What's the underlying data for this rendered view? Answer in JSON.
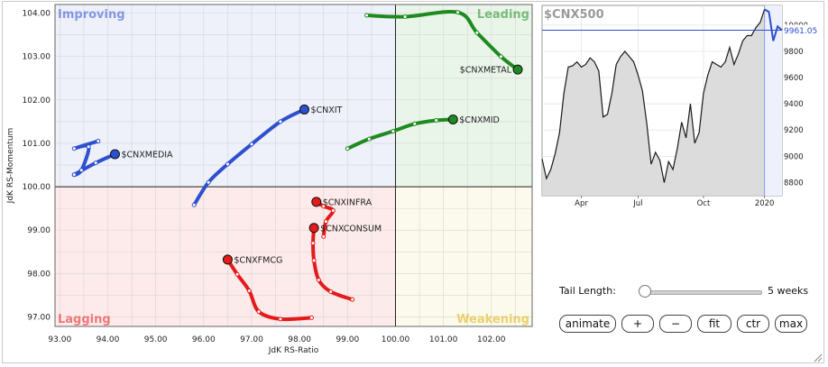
{
  "colors": {
    "leading": "#1f8a1f",
    "improving": "#2e50cf",
    "lagging": "#e51b1b",
    "weakening": "#e0b000",
    "quad_leading_bg": "#eaf5ea",
    "quad_improving_bg": "#eef0fa",
    "quad_lagging_bg": "#fdeaea",
    "quad_weakening_bg": "#fbfaec",
    "benchmark_line": "#1a1a1a",
    "benchmark_recent": "#2d4fd0"
  },
  "chart_data": [
    {
      "type": "scatter",
      "subtype": "relative-rotation-graph",
      "xlabel": "JdK RS-Ratio",
      "ylabel": "JdK RS-Momentum",
      "xlim": [
        92.9,
        102.85
      ],
      "ylim": [
        96.78,
        104.2
      ],
      "x_center": 100.0,
      "y_center": 100.0,
      "x_ticks": [
        93,
        94,
        95,
        96,
        97,
        98,
        99,
        100,
        101,
        102
      ],
      "x_tick_labels": [
        "93.00",
        "94.00",
        "95.00",
        "96.00",
        "97.00",
        "98.00",
        "99.00",
        "100.00",
        "101.00",
        "102.00"
      ],
      "y_ticks": [
        97,
        98,
        99,
        100,
        101,
        102,
        103,
        104
      ],
      "y_tick_labels": [
        "97.00",
        "98.00",
        "99.00",
        "100.00",
        "101.00",
        "102.00",
        "103.00",
        "104.00"
      ],
      "grid": true,
      "quadrants": [
        {
          "name": "Improving",
          "position": "top-left"
        },
        {
          "name": "Leading",
          "position": "top-right"
        },
        {
          "name": "Lagging",
          "position": "bottom-left"
        },
        {
          "name": "Weakening",
          "position": "bottom-right"
        }
      ],
      "series": [
        {
          "name": "$CNXMETAL",
          "quadrant": "Leading",
          "tail": [
            [
              99.4,
              103.95
            ],
            [
              100.2,
              103.92
            ],
            [
              101.3,
              104.02
            ],
            [
              101.7,
              103.55
            ],
            [
              102.2,
              103.0
            ],
            [
              102.55,
              102.7
            ]
          ]
        },
        {
          "name": "$CNXMID",
          "quadrant": "Leading",
          "tail": [
            [
              99.0,
              100.88
            ],
            [
              99.45,
              101.1
            ],
            [
              99.95,
              101.28
            ],
            [
              100.4,
              101.45
            ],
            [
              100.85,
              101.53
            ],
            [
              101.2,
              101.55
            ]
          ]
        },
        {
          "name": "$CNXIT",
          "quadrant": "Improving",
          "tail": [
            [
              95.8,
              99.58
            ],
            [
              96.1,
              100.1
            ],
            [
              96.5,
              100.52
            ],
            [
              97.0,
              100.98
            ],
            [
              97.6,
              101.5
            ],
            [
              98.1,
              101.78
            ]
          ]
        },
        {
          "name": "$CNXMEDIA",
          "quadrant": "Improving",
          "tail": [
            [
              93.8,
              101.05
            ],
            [
              93.3,
              100.88
            ],
            [
              93.6,
              100.92
            ],
            [
              93.45,
              100.38
            ],
            [
              93.3,
              100.28
            ],
            [
              93.75,
              100.55
            ],
            [
              94.15,
              100.75
            ]
          ]
        },
        {
          "name": "$CNXINFRA",
          "quadrant": "Lagging",
          "tail": [
            [
              98.5,
              98.85
            ],
            [
              98.55,
              99.2
            ],
            [
              98.7,
              99.45
            ],
            [
              98.5,
              99.55
            ],
            [
              98.35,
              99.65
            ]
          ]
        },
        {
          "name": "$CNXCONSUM",
          "quadrant": "Lagging",
          "tail": [
            [
              99.1,
              97.4
            ],
            [
              98.65,
              97.58
            ],
            [
              98.4,
              97.85
            ],
            [
              98.3,
              98.3
            ],
            [
              98.28,
              98.7
            ],
            [
              98.3,
              99.05
            ]
          ]
        },
        {
          "name": "$CNXFMCG",
          "quadrant": "Lagging",
          "tail": [
            [
              98.25,
              96.98
            ],
            [
              97.6,
              96.95
            ],
            [
              97.15,
              97.12
            ],
            [
              96.95,
              97.6
            ],
            [
              96.7,
              97.98
            ],
            [
              96.5,
              98.32
            ]
          ]
        }
      ]
    },
    {
      "type": "area",
      "title": "$CNX500",
      "last_value_label": "9961.05",
      "x_tick_labels": [
        "Apr",
        "Jul",
        "Oct",
        "2020"
      ],
      "y_ticks": [
        8800,
        9000,
        9200,
        9400,
        9600,
        9800,
        10000
      ],
      "y_tick_labels": [
        "8800",
        "9000",
        "9200",
        "9400",
        "9600",
        "9800",
        "10000"
      ],
      "ylim": [
        8700,
        10150
      ],
      "grid": true,
      "values": [
        8980,
        8830,
        8900,
        9020,
        9180,
        9480,
        9680,
        9690,
        9720,
        9680,
        9700,
        9750,
        9720,
        9650,
        9300,
        9320,
        9480,
        9700,
        9760,
        9800,
        9760,
        9720,
        9620,
        9500,
        9250,
        8940,
        9030,
        8970,
        8800,
        8960,
        8900,
        9060,
        9260,
        9140,
        9400,
        9100,
        9180,
        9480,
        9620,
        9720,
        9700,
        9680,
        9720,
        9830,
        9700,
        9780,
        9880,
        9920,
        9920,
        9980,
        10020,
        10120,
        10100,
        9880,
        9990,
        9961.05
      ],
      "highlight_from_index": 51
    }
  ],
  "controls": {
    "tail_length_label": "Tail Length:",
    "tail_length_value": "5 weeks",
    "tail_slider_fraction": 0.05,
    "buttons": [
      {
        "label": "animate"
      },
      {
        "label": "+"
      },
      {
        "label": "−"
      },
      {
        "label": "fit"
      },
      {
        "label": "ctr"
      },
      {
        "label": "max"
      }
    ]
  }
}
